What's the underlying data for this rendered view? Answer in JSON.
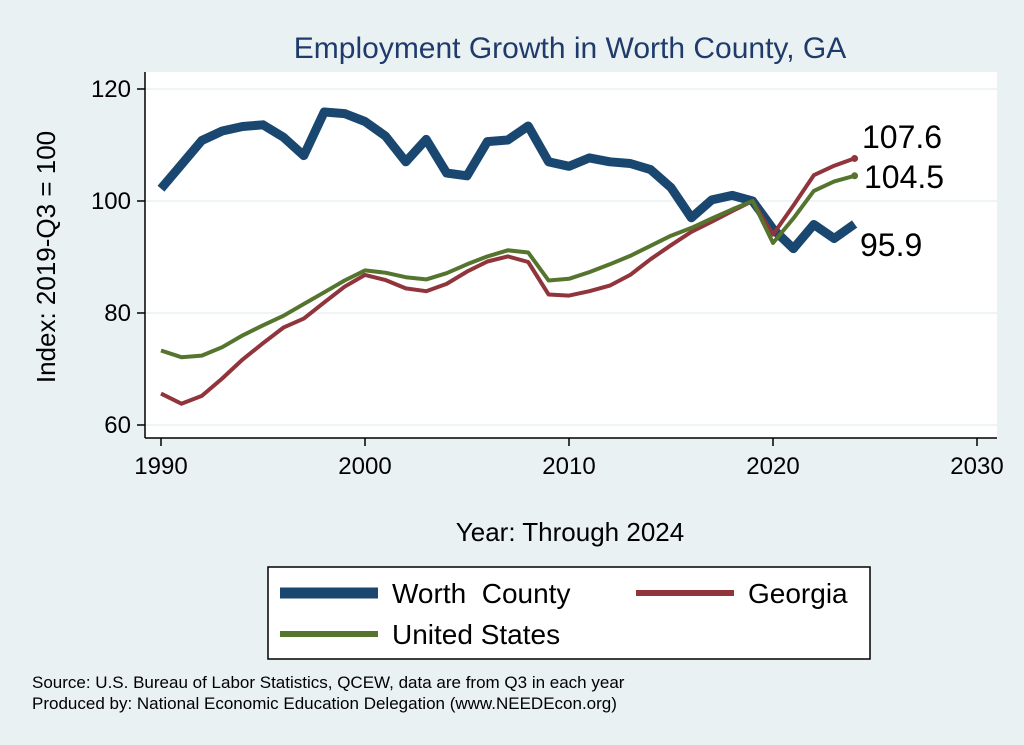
{
  "chart_data": {
    "type": "line",
    "title": "Employment Growth in Worth County, GA",
    "xlabel": "Year: Through 2024",
    "ylabel": "Index: 2019-Q3 = 100",
    "xlim": [
      1990,
      2030
    ],
    "ylim": [
      60,
      120
    ],
    "x_ticks": [
      "1990",
      "2000",
      "2010",
      "2020",
      "2030"
    ],
    "y_ticks": [
      "60",
      "80",
      "100",
      "120"
    ],
    "grid": true,
    "x": [
      1990,
      1991,
      1992,
      1993,
      1994,
      1995,
      1996,
      1997,
      1998,
      1999,
      2000,
      2001,
      2002,
      2003,
      2004,
      2005,
      2006,
      2007,
      2008,
      2009,
      2010,
      2011,
      2012,
      2013,
      2014,
      2015,
      2016,
      2017,
      2018,
      2019,
      2020,
      2021,
      2022,
      2023,
      2024
    ],
    "series": [
      {
        "name": "Worth  County",
        "color": "#1a476f",
        "width": 9,
        "values": [
          102.2,
          106.5,
          110.8,
          112.5,
          113.3,
          113.6,
          111.4,
          108.1,
          115.9,
          115.6,
          114.2,
          111.6,
          107.0,
          111.0,
          105.0,
          104.5,
          110.6,
          110.9,
          113.4,
          107.0,
          106.2,
          107.7,
          107.0,
          106.7,
          105.6,
          102.4,
          97.0,
          100.2,
          101.0,
          100.0,
          95.0,
          91.5,
          95.8,
          93.3,
          95.9
        ]
      },
      {
        "name": "Georgia",
        "color": "#90353b",
        "width": 4,
        "values": [
          65.6,
          63.8,
          65.2,
          68.3,
          71.7,
          74.6,
          77.4,
          79.0,
          81.9,
          84.7,
          86.8,
          85.9,
          84.4,
          83.9,
          85.2,
          87.4,
          89.2,
          90.1,
          89.1,
          83.3,
          83.1,
          83.9,
          84.9,
          86.8,
          89.6,
          92.1,
          94.5,
          96.3,
          98.2,
          100.0,
          94.0,
          99.2,
          104.6,
          106.3,
          107.6
        ]
      },
      {
        "name": "United States",
        "color": "#55752f",
        "width": 4,
        "values": [
          73.3,
          72.1,
          72.4,
          73.9,
          76.0,
          77.8,
          79.5,
          81.6,
          83.7,
          85.8,
          87.6,
          87.2,
          86.4,
          86.0,
          87.1,
          88.7,
          90.1,
          91.2,
          90.8,
          85.8,
          86.1,
          87.3,
          88.7,
          90.2,
          92.0,
          93.8,
          95.2,
          96.9,
          98.5,
          100.0,
          92.5,
          96.9,
          101.8,
          103.5,
          104.5
        ]
      }
    ],
    "end_labels": [
      "95.9",
      "107.6",
      "104.5"
    ],
    "legend": {
      "position": "bottom",
      "columns": 2
    },
    "notes": [
      "Source: U.S. Bureau of Labor Statistics, QCEW, data are from Q3 in each year",
      "Produced by: National Economic Education Delegation (www.NEEDEcon.org)"
    ]
  }
}
